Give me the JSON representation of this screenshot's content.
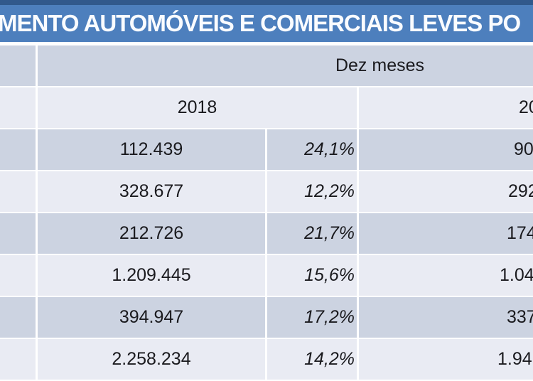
{
  "title": {
    "visible_text": "MENTO AUTOMÓVEIS E COMERCIAIS LEVES PO"
  },
  "table": {
    "period_header": "Dez meses",
    "year_left_label": "2018",
    "year_right_fragment": "20",
    "rows": [
      {
        "value_2018": "112.439",
        "pct_change": "24,1%",
        "value_2019_fragment": "90"
      },
      {
        "value_2018": "328.677",
        "pct_change": "12,2%",
        "value_2019_fragment": "292"
      },
      {
        "value_2018": "212.726",
        "pct_change": "21,7%",
        "value_2019_fragment": "174"
      },
      {
        "value_2018": "1.209.445",
        "pct_change": "15,6%",
        "value_2019_fragment": "1.04"
      },
      {
        "value_2018": "394.947",
        "pct_change": "17,2%",
        "value_2019_fragment": "337"
      },
      {
        "value_2018": "2.258.234",
        "pct_change": "14,2%",
        "value_2019_fragment": "1.94"
      }
    ]
  },
  "chart_data": {
    "type": "table",
    "title": "MENTO AUTOMÓVEIS E COMERCIAIS LEVES PO (cropped slide title)",
    "column_headers": [
      "Dez meses 2018",
      "% (itálico)",
      "Dez meses 20.. (cortado)"
    ],
    "rows": [
      [
        "112.439",
        "24,1%",
        "90 (cortado)"
      ],
      [
        "328.677",
        "12,2%",
        "292 (cortado)"
      ],
      [
        "212.726",
        "21,7%",
        "174 (cortado)"
      ],
      [
        "1.209.445",
        "15,6%",
        "1.04 (cortado)"
      ],
      [
        "394.947",
        "17,2%",
        "337 (cortado)"
      ],
      [
        "2.258.234",
        "14,2%",
        "1.94 (cortado)"
      ]
    ]
  },
  "colors": {
    "title_strip": "#31598c",
    "title_bar": "#4d7fbd",
    "title_text": "#fafcff",
    "row_dark": "#ccd3e1",
    "row_light": "#e9ebf3",
    "text": "#1a1a1e"
  }
}
